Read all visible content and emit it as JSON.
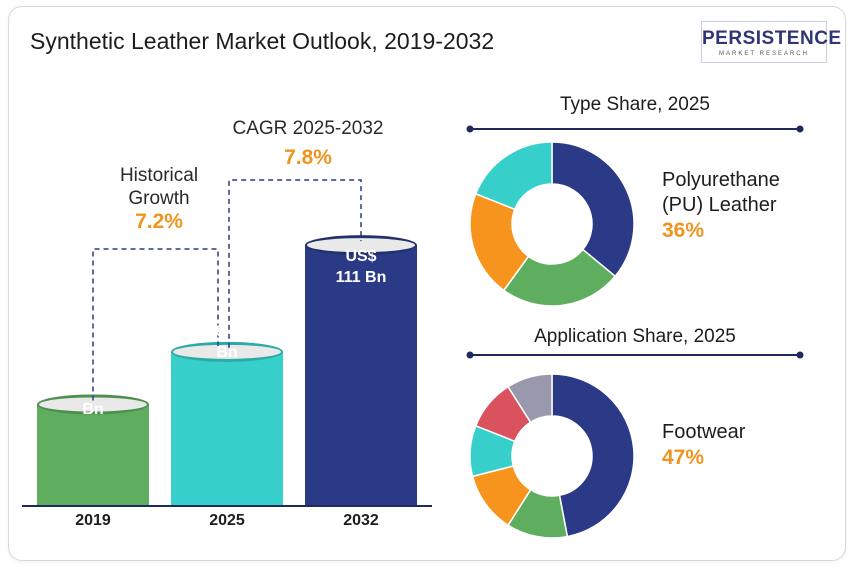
{
  "title": "Synthetic Leather Market Outlook, 2019-2032",
  "logo": {
    "main": "PERSISTENCE",
    "sub": "MARKET RESEARCH"
  },
  "colors": {
    "green": "#5fae5f",
    "teal": "#36cfc9",
    "navy": "#2b3a86",
    "orange": "#f7941d",
    "red": "#d9525e",
    "gray": "#9a98ad",
    "accent_text": "#f0941f"
  },
  "annotations": {
    "historical": {
      "label_line1": "Historical",
      "label_line2": "Growth",
      "value": "7.2%"
    },
    "cagr": {
      "label": "CAGR 2025-2032",
      "value": "7.8%"
    }
  },
  "chart_data": [
    {
      "type": "bar",
      "categories": [
        "2019",
        "2025",
        "2032"
      ],
      "values": [
        43.2,
        65.6,
        111
      ],
      "value_labels": [
        "US$ 43.2\nBn",
        "US$ 65.6\nBn",
        "US$\n111 Bn"
      ],
      "colors": [
        "#5fae5f",
        "#36cfc9",
        "#2b3a86"
      ]
    },
    {
      "type": "pie",
      "title": "Type Share, 2025",
      "highlight_label": "Polyurethane\n(PU) Leather",
      "highlight_value": "36%",
      "slices": [
        {
          "value": 36,
          "color": "#2b3a86"
        },
        {
          "value": 24,
          "color": "#5fae5f"
        },
        {
          "value": 21,
          "color": "#f7941d"
        },
        {
          "value": 19,
          "color": "#36cfc9"
        }
      ]
    },
    {
      "type": "pie",
      "title": "Application Share, 2025",
      "highlight_label": "Footwear",
      "highlight_value": "47%",
      "slices": [
        {
          "value": 47,
          "color": "#2b3a86"
        },
        {
          "value": 12,
          "color": "#5fae5f"
        },
        {
          "value": 12,
          "color": "#f7941d"
        },
        {
          "value": 10,
          "color": "#36cfc9"
        },
        {
          "value": 10,
          "color": "#d9525e"
        },
        {
          "value": 9,
          "color": "#9a98ad"
        }
      ]
    }
  ]
}
